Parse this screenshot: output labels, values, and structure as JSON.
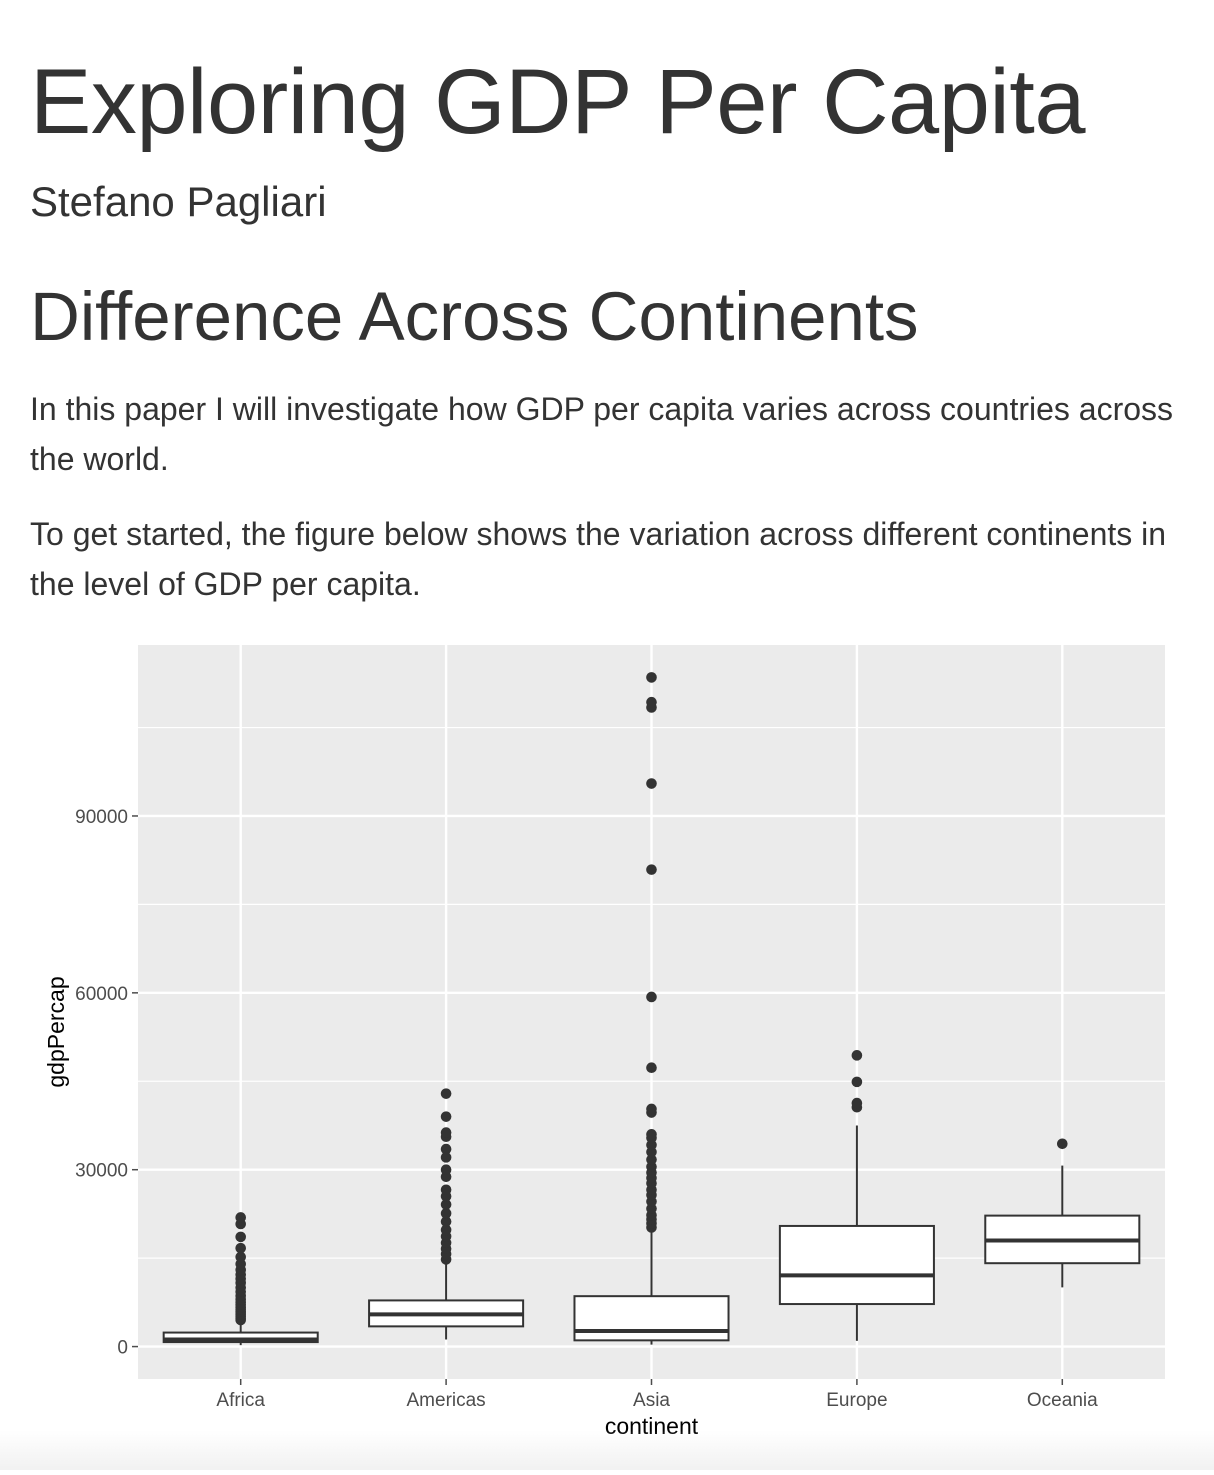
{
  "document": {
    "title": "Exploring GDP Per Capita",
    "author": "Stefano Pagliari",
    "section_heading": "Difference Across Continents",
    "paragraphs": [
      "In this paper I will investigate how GDP per capita varies across countries across the world.",
      "To get started, the figure below shows the variation across different continents in the level of GDP per capita."
    ]
  },
  "chart_data": {
    "type": "boxplot",
    "xlabel": "continent",
    "ylabel": "gdpPercap",
    "categories": [
      "Africa",
      "Americas",
      "Asia",
      "Europe",
      "Oceania"
    ],
    "y_ticks": [
      0,
      30000,
      60000,
      90000
    ],
    "ylim": [
      -5500,
      119000
    ],
    "grid": true,
    "colors": {
      "panel": "#ebebeb",
      "grid": "#ffffff",
      "box_fill": "#ffffff",
      "line": "#333333",
      "point": "#333333",
      "tick_text": "#4d4d4d"
    },
    "boxes": [
      {
        "name": "Africa",
        "lower_whisker": 241,
        "q1": 762,
        "median": 1192,
        "q3": 2377,
        "upper_whisker": 4300,
        "outliers": [
          4500,
          4800,
          5100,
          5400,
          5700,
          6000,
          6300,
          6700,
          7100,
          7500,
          8000,
          8600,
          9300,
          10000,
          10800,
          11500,
          12200,
          13000,
          14000,
          15200,
          16700,
          18600,
          20800,
          21900
        ]
      },
      {
        "name": "Americas",
        "lower_whisker": 1202,
        "q1": 3428,
        "median": 5466,
        "q3": 7830,
        "upper_whisker": 14200,
        "outliers": [
          14800,
          15700,
          16600,
          17600,
          18700,
          19800,
          21200,
          22600,
          24100,
          25500,
          26600,
          28800,
          30000,
          32100,
          33500,
          35600,
          36300,
          39000,
          42900
        ]
      },
      {
        "name": "Asia",
        "lower_whisker": 331,
        "q1": 1057,
        "median": 2647,
        "q3": 8549,
        "upper_whisker": 19800,
        "outliers": [
          20200,
          20900,
          21600,
          22300,
          23400,
          24600,
          25700,
          26600,
          27700,
          28600,
          29500,
          30500,
          31700,
          33000,
          34200,
          35400,
          36000,
          39700,
          40300,
          47300,
          59300,
          80900,
          95500,
          108400,
          109300,
          113500
        ]
      },
      {
        "name": "Europe",
        "lower_whisker": 974,
        "q1": 7213,
        "median": 12082,
        "q3": 20461,
        "upper_whisker": 37500,
        "outliers": [
          40600,
          41300,
          44900,
          49400
        ]
      },
      {
        "name": "Oceania",
        "lower_whisker": 10040,
        "q1": 14142,
        "median": 17983,
        "q3": 22214,
        "upper_whisker": 30700,
        "outliers": [
          34400
        ]
      }
    ]
  }
}
